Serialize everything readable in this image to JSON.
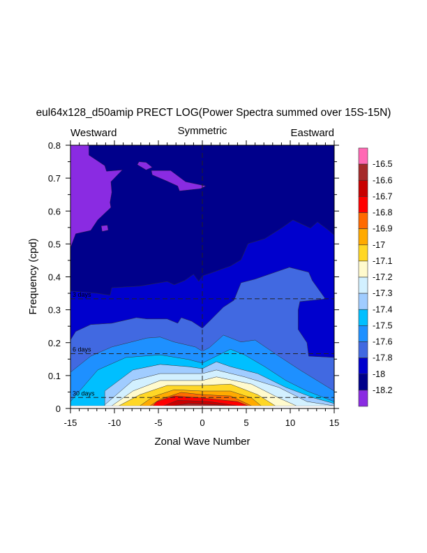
{
  "chart_data": {
    "type": "contour",
    "title": "eul64x128_d50amip PRECT LOG(Power Spectra summed over 15S-15N)",
    "xlabel": "Zonal Wave Number",
    "ylabel": "Frequency (cpd)",
    "top_labels": {
      "left": "Westward",
      "center": "Symmetric",
      "right": "Eastward"
    },
    "xlim": [
      -15,
      15
    ],
    "ylim": [
      0,
      0.8
    ],
    "x_ticks": [
      -15,
      -10,
      -5,
      0,
      5,
      10,
      15
    ],
    "x_tick_labels": [
      "-15",
      "-10",
      "-5",
      "0",
      "5",
      "10",
      "15"
    ],
    "y_ticks": [
      0,
      0.1,
      0.2,
      0.3,
      0.4,
      0.5,
      0.6,
      0.7,
      0.8
    ],
    "y_tick_labels": [
      "0",
      "0.1",
      "0.2",
      "0.3",
      "0.4",
      "0.5",
      "0.6",
      "0.7",
      "0.8"
    ],
    "reference_lines": [
      {
        "label": "3 days",
        "frequency": 0.3333
      },
      {
        "label": "6 days",
        "frequency": 0.1667
      },
      {
        "label": "30 days",
        "frequency": 0.0333
      }
    ],
    "background_color": "#00008B",
    "low_color": "#8A2BE2",
    "low_regions": [
      [
        [
          -15,
          0.8
        ],
        [
          -12.9,
          0.8
        ],
        [
          -12.9,
          0.77
        ],
        [
          -11.1,
          0.738
        ],
        [
          -10.9,
          0.721
        ],
        [
          -9.1,
          0.725
        ],
        [
          -10.4,
          0.689
        ],
        [
          -10.3,
          0.657
        ],
        [
          -10.5,
          0.626
        ],
        [
          -10.4,
          0.611
        ],
        [
          -11.9,
          0.573
        ],
        [
          -12.7,
          0.541
        ],
        [
          -14.4,
          0.531
        ],
        [
          -15,
          0.488
        ]
      ],
      [
        [
          -7.2,
          0.75
        ],
        [
          -6.4,
          0.748
        ],
        [
          -5.7,
          0.733
        ],
        [
          -6.4,
          0.725
        ],
        [
          -7.4,
          0.741
        ]
      ],
      [
        [
          -5.8,
          0.723
        ],
        [
          -3.6,
          0.723
        ],
        [
          -1.9,
          0.689
        ],
        [
          0.4,
          0.676
        ],
        [
          -0.2,
          0.668
        ],
        [
          -2.6,
          0.661
        ],
        [
          -2.8,
          0.676
        ],
        [
          -4.2,
          0.693
        ],
        [
          -5.7,
          0.71
        ]
      ],
      [
        [
          -11.5,
          0.555
        ],
        [
          -10.8,
          0.557
        ],
        [
          -10.7,
          0.542
        ],
        [
          -11.4,
          0.538
        ]
      ]
    ],
    "colorbar": {
      "labels": [
        "-16.5",
        "-16.6",
        "-16.7",
        "-16.8",
        "-16.9",
        "-17",
        "-17.1",
        "-17.2",
        "-17.3",
        "-17.4",
        "-17.5",
        "-17.6",
        "-17.8",
        "-18",
        "-18.2"
      ],
      "colors": [
        "#FF69B4",
        "#A52A2A",
        "#C80000",
        "#FF0000",
        "#FF6A00",
        "#FFAA00",
        "#FFD726",
        "#FFFACD",
        "#D2F0FF",
        "#A0CCFF",
        "#00BFFF",
        "#1E90FF",
        "#4169E1",
        "#0000CD",
        "#00008B",
        "#8A2BE2"
      ]
    },
    "fill_levels": [
      {
        "level": -18,
        "color": "#0000CD",
        "boundary": [
          [
            -15,
            0.357
          ],
          [
            -11.9,
            0.35
          ],
          [
            -10.5,
            0.344
          ],
          [
            -10.3,
            0.367
          ],
          [
            -7.1,
            0.372
          ],
          [
            -4.0,
            0.386
          ],
          [
            -3.2,
            0.376
          ],
          [
            -2.0,
            0.389
          ],
          [
            -1.0,
            0.408
          ],
          [
            -0.4,
            0.386
          ],
          [
            0,
            0.403
          ],
          [
            0.8,
            0.41
          ],
          [
            3.2,
            0.433
          ],
          [
            4.4,
            0.452
          ],
          [
            5.2,
            0.501
          ],
          [
            7.1,
            0.516
          ],
          [
            9.1,
            0.55
          ],
          [
            10.3,
            0.573
          ],
          [
            12.3,
            0.548
          ],
          [
            13.1,
            0.567
          ],
          [
            14.3,
            0.543
          ],
          [
            15,
            0.527
          ]
        ]
      },
      {
        "level": -17.8,
        "color": "#4169E1",
        "boundary": [
          [
            -15,
            0.208
          ],
          [
            -14.4,
            0.234
          ],
          [
            -12.7,
            0.255
          ],
          [
            -10.3,
            0.259
          ],
          [
            -7.5,
            0.276
          ],
          [
            -6.3,
            0.272
          ],
          [
            -4.0,
            0.272
          ],
          [
            -2.8,
            0.259
          ],
          [
            -2.4,
            0.276
          ],
          [
            -1.2,
            0.265
          ],
          [
            0,
            0.244
          ],
          [
            0.8,
            0.265
          ],
          [
            2.4,
            0.308
          ],
          [
            3.6,
            0.329
          ],
          [
            4.4,
            0.382
          ],
          [
            6.0,
            0.393
          ],
          [
            9.9,
            0.429
          ],
          [
            12.1,
            0.414
          ],
          [
            12.5,
            0.389
          ],
          [
            14.0,
            0.333
          ],
          [
            11.1,
            0.325
          ],
          [
            10.9,
            0.3
          ],
          [
            10.9,
            0.24
          ],
          [
            11.9,
            0.2
          ],
          [
            12.1,
            0.159
          ],
          [
            15,
            0.155
          ]
        ]
      },
      {
        "level": -17.6,
        "color": "#1E90FF",
        "boundary": [
          [
            -15,
            0.11
          ],
          [
            -12.7,
            0.159
          ],
          [
            -10.3,
            0.187
          ],
          [
            -6.3,
            0.214
          ],
          [
            -4.8,
            0.217
          ],
          [
            -3.2,
            0.202
          ],
          [
            -0.8,
            0.187
          ],
          [
            0,
            0.174
          ],
          [
            0.8,
            0.185
          ],
          [
            2.4,
            0.223
          ],
          [
            4.4,
            0.202
          ],
          [
            6.0,
            0.208
          ],
          [
            8.7,
            0.159
          ],
          [
            11.1,
            0.117
          ],
          [
            15,
            0.053
          ]
        ]
      },
      {
        "level": -17.5,
        "color": "#00BFFF",
        "boundary": [
          [
            -15,
            0.021
          ],
          [
            -11.9,
            0.117
          ],
          [
            -8.7,
            0.155
          ],
          [
            -4.8,
            0.163
          ],
          [
            -1.6,
            0.149
          ],
          [
            0,
            0.138
          ],
          [
            1.6,
            0.159
          ],
          [
            3.2,
            0.18
          ],
          [
            4.8,
            0.163
          ],
          [
            7.1,
            0.127
          ],
          [
            9.5,
            0.085
          ],
          [
            11.9,
            0.053
          ],
          [
            15,
            0.021
          ]
        ]
      },
      {
        "level": -17.4,
        "color": "#A0CCFF",
        "boundary": [
          [
            -11.1,
            0.008
          ],
          [
            -11.1,
            0.053
          ],
          [
            -7.9,
            0.117
          ],
          [
            -4.8,
            0.134
          ],
          [
            -1.6,
            0.127
          ],
          [
            0,
            0.121
          ],
          [
            1.6,
            0.142
          ],
          [
            3.2,
            0.127
          ],
          [
            6.3,
            0.106
          ],
          [
            9.5,
            0.064
          ],
          [
            12.7,
            0.032
          ],
          [
            15,
            0.015
          ]
        ]
      },
      {
        "level": -17.3,
        "color": "#D2F0FF",
        "boundary": [
          [
            -11.1,
            0.011
          ],
          [
            -7.9,
            0.085
          ],
          [
            -4.8,
            0.106
          ],
          [
            0,
            0.106
          ],
          [
            1.6,
            0.117
          ],
          [
            4.8,
            0.096
          ],
          [
            8.7,
            0.064
          ],
          [
            11.9,
            0.021
          ],
          [
            15,
            0.008
          ]
        ]
      },
      {
        "level": -17.2,
        "color": "#FFFACD",
        "boundary": [
          [
            -10.3,
            0.008
          ],
          [
            -7.9,
            0.053
          ],
          [
            -4.8,
            0.085
          ],
          [
            0,
            0.085
          ],
          [
            1.6,
            0.096
          ],
          [
            5.6,
            0.074
          ],
          [
            8.7,
            0.032
          ],
          [
            10.7,
            0.008
          ]
        ]
      },
      {
        "level": -17.1,
        "color": "#FFD726",
        "boundary": [
          [
            -9.5,
            0.008
          ],
          [
            -7.1,
            0.042
          ],
          [
            -4.0,
            0.07
          ],
          [
            0,
            0.07
          ],
          [
            3.2,
            0.074
          ],
          [
            6.3,
            0.042
          ],
          [
            8.3,
            0.008
          ]
        ]
      },
      {
        "level": -17,
        "color": "#FFAA00",
        "boundary": [
          [
            -7.1,
            0.008
          ],
          [
            -5.6,
            0.036
          ],
          [
            -3.2,
            0.057
          ],
          [
            0,
            0.053
          ],
          [
            3.2,
            0.053
          ],
          [
            5.6,
            0.032
          ],
          [
            6.7,
            0.008
          ]
        ]
      },
      {
        "level": -16.9,
        "color": "#FF6A00",
        "boundary": [
          [
            -5.95,
            0.008
          ],
          [
            -4.8,
            0.028
          ],
          [
            -2.4,
            0.049
          ],
          [
            0,
            0.042
          ],
          [
            3.2,
            0.038
          ],
          [
            5.6,
            0.008
          ]
        ]
      },
      {
        "level": -16.8,
        "color": "#FF0000",
        "boundary": [
          [
            -5.6,
            0.008
          ],
          [
            -5.2,
            0.021
          ],
          [
            -3.2,
            0.038
          ],
          [
            0,
            0.032
          ],
          [
            4.0,
            0.021
          ],
          [
            5.2,
            0.008
          ]
        ]
      },
      {
        "level": -16.7,
        "color": "#C80000",
        "boundary": [
          [
            -4.4,
            0.008
          ],
          [
            -2.8,
            0.025
          ],
          [
            0.8,
            0.021
          ],
          [
            4.0,
            0.008
          ]
        ]
      },
      {
        "level": -16.6,
        "color": "#A52A2A",
        "boundary": [
          [
            -3.2,
            0.008
          ],
          [
            -1.6,
            0.015
          ],
          [
            1.6,
            0.011
          ],
          [
            2.8,
            0.008
          ]
        ]
      }
    ],
    "min_frequency_plotted": 0.008
  }
}
